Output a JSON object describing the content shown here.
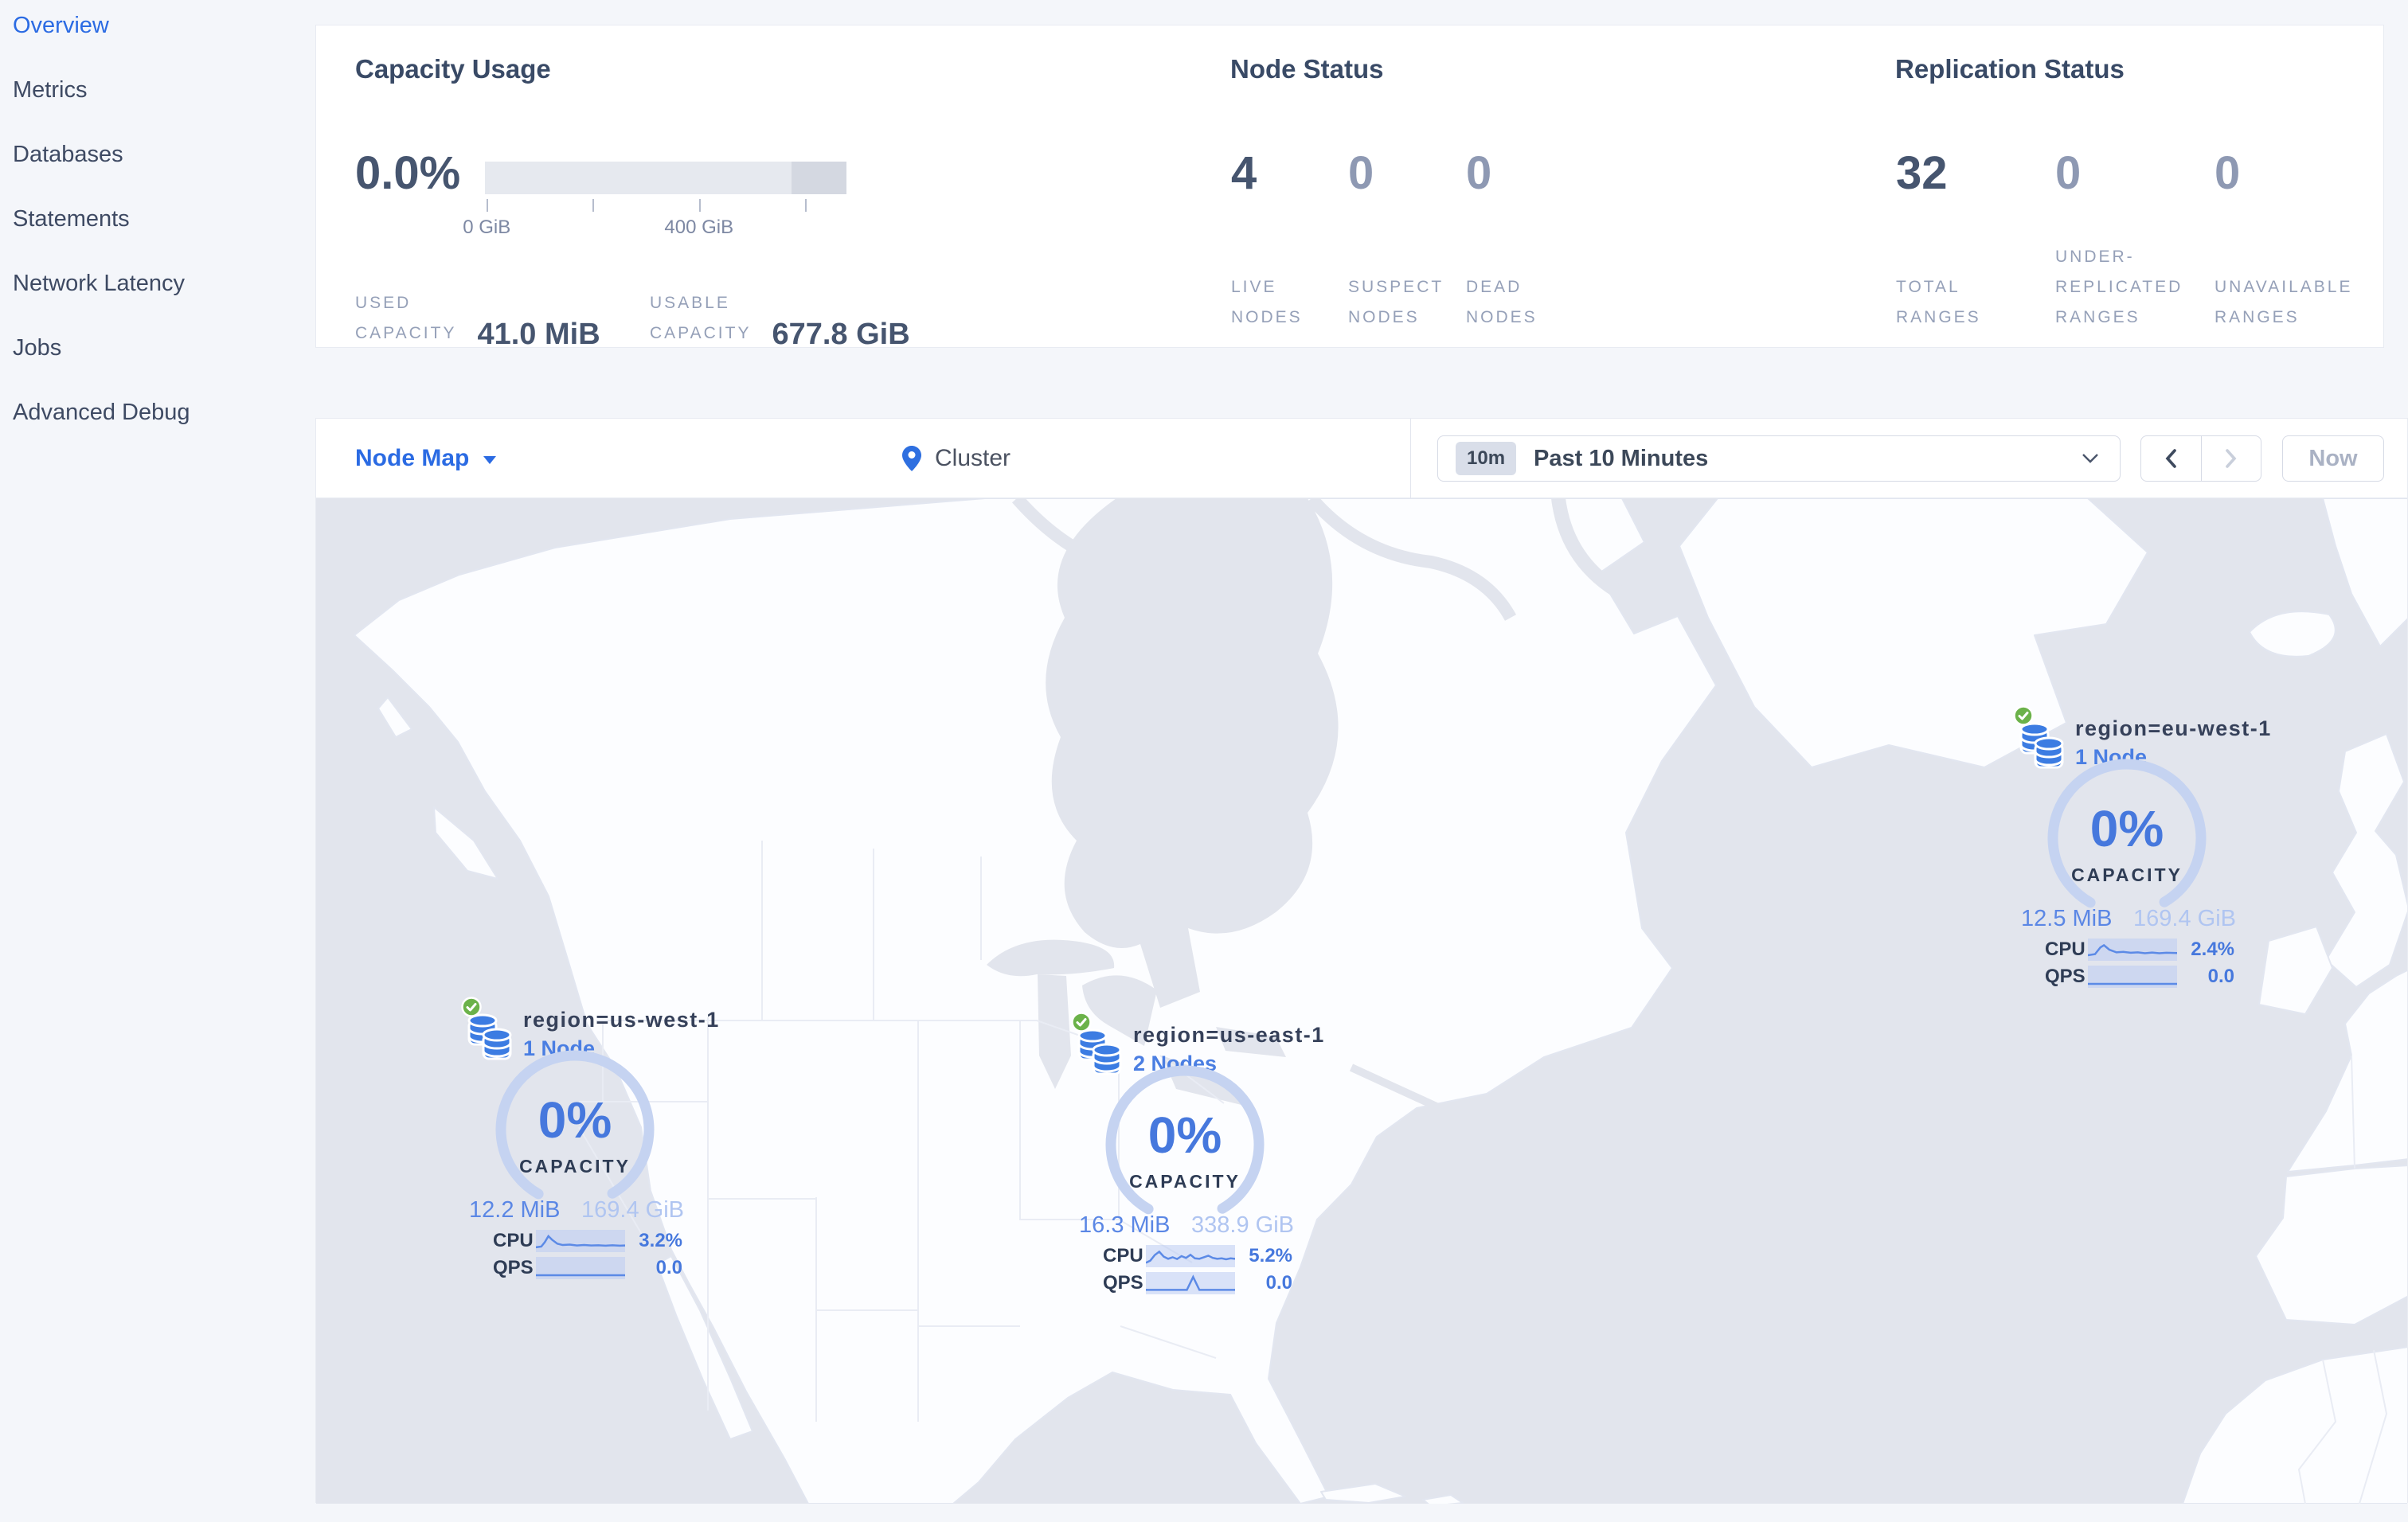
{
  "sidebar": {
    "items": [
      {
        "label": "Overview",
        "active": true
      },
      {
        "label": "Metrics",
        "active": false
      },
      {
        "label": "Databases",
        "active": false
      },
      {
        "label": "Statements",
        "active": false
      },
      {
        "label": "Network Latency",
        "active": false
      },
      {
        "label": "Jobs",
        "active": false
      },
      {
        "label": "Advanced Debug",
        "active": false
      }
    ]
  },
  "summary": {
    "capacity": {
      "title": "Capacity Usage",
      "percent": "0.0%",
      "bar": {
        "segments": [
          {
            "width": 84.8,
            "color": "#e6e9ef"
          },
          {
            "width": 15.2,
            "color": "#d4d8e1"
          }
        ],
        "ticks": [
          {
            "pos": 0.5,
            "label": "0 GiB"
          },
          {
            "pos": 29.8,
            "label": ""
          },
          {
            "pos": 59.2,
            "label": "400 GiB"
          },
          {
            "pos": 88.5,
            "label": ""
          }
        ]
      },
      "stats": [
        {
          "label_lines": [
            "USED",
            "CAPACITY"
          ],
          "value": "41.0 MiB"
        },
        {
          "label_lines": [
            "USABLE",
            "CAPACITY"
          ],
          "value": "677.8 GiB"
        }
      ]
    },
    "nodes": {
      "title": "Node Status",
      "stats": [
        {
          "value": "4",
          "label_lines": [
            "LIVE",
            "NODES"
          ]
        },
        {
          "value": "0",
          "label_lines": [
            "SUSPECT",
            "NODES"
          ]
        },
        {
          "value": "0",
          "label_lines": [
            "DEAD",
            "NODES"
          ]
        }
      ]
    },
    "replication": {
      "title": "Replication Status",
      "stats": [
        {
          "value": "32",
          "label_lines": [
            "TOTAL",
            "RANGES"
          ]
        },
        {
          "value": "0",
          "label_lines": [
            "UNDER-",
            "REPLICATED",
            "RANGES"
          ]
        },
        {
          "value": "0",
          "label_lines": [
            "UNAVAILABLE",
            "RANGES"
          ]
        }
      ]
    }
  },
  "toolbar": {
    "view_selector": "Node Map",
    "breadcrumb": "Cluster",
    "time_window_badge": "10m",
    "time_window_label": "Past 10 Minutes",
    "now_label": "Now"
  },
  "map": {
    "regions": [
      {
        "name": "region=us-west-1",
        "nodes": "1 Node",
        "percent": "0%",
        "capacity_label": "CAPACITY",
        "used": "12.2 MiB",
        "usable": "169.4 GiB",
        "cpu_label": "CPU",
        "cpu_value": "3.2%",
        "qps_label": "QPS",
        "qps_value": "0.0",
        "cpu_spark": [
          [
            0,
            78
          ],
          [
            6,
            75
          ],
          [
            10,
            55
          ],
          [
            14,
            28
          ],
          [
            18,
            44
          ],
          [
            24,
            62
          ],
          [
            30,
            68
          ],
          [
            38,
            66
          ],
          [
            46,
            70
          ],
          [
            54,
            68
          ],
          [
            62,
            70
          ],
          [
            70,
            69
          ],
          [
            78,
            71
          ],
          [
            86,
            69
          ],
          [
            94,
            71
          ],
          [
            100,
            70
          ]
        ],
        "qps_spark": [
          [
            0,
            82
          ],
          [
            100,
            82
          ]
        ]
      },
      {
        "name": "region=us-east-1",
        "nodes": "2 Nodes",
        "percent": "0%",
        "capacity_label": "CAPACITY",
        "used": "16.3 MiB",
        "usable": "338.9 GiB",
        "cpu_label": "CPU",
        "cpu_value": "5.2%",
        "qps_label": "QPS",
        "qps_value": "0.0",
        "cpu_spark": [
          [
            0,
            80
          ],
          [
            5,
            70
          ],
          [
            10,
            45
          ],
          [
            15,
            30
          ],
          [
            20,
            52
          ],
          [
            25,
            62
          ],
          [
            30,
            55
          ],
          [
            35,
            63
          ],
          [
            40,
            50
          ],
          [
            45,
            58
          ],
          [
            50,
            44
          ],
          [
            55,
            60
          ],
          [
            60,
            62
          ],
          [
            65,
            55
          ],
          [
            70,
            48
          ],
          [
            75,
            58
          ],
          [
            80,
            62
          ],
          [
            85,
            60
          ],
          [
            90,
            64
          ],
          [
            95,
            60
          ],
          [
            100,
            62
          ]
        ],
        "qps_spark": [
          [
            0,
            80
          ],
          [
            46,
            80
          ],
          [
            53,
            22
          ],
          [
            60,
            80
          ],
          [
            100,
            80
          ]
        ]
      },
      {
        "name": "region=eu-west-1",
        "nodes": "1 Node",
        "percent": "0%",
        "capacity_label": "CAPACITY",
        "used": "12.5 MiB",
        "usable": "169.4 GiB",
        "cpu_label": "CPU",
        "cpu_value": "2.4%",
        "qps_label": "QPS",
        "qps_value": "0.0",
        "cpu_spark": [
          [
            0,
            75
          ],
          [
            8,
            70
          ],
          [
            14,
            40
          ],
          [
            18,
            30
          ],
          [
            24,
            50
          ],
          [
            32,
            62
          ],
          [
            40,
            60
          ],
          [
            48,
            64
          ],
          [
            56,
            62
          ],
          [
            64,
            66
          ],
          [
            72,
            63
          ],
          [
            80,
            66
          ],
          [
            88,
            64
          ],
          [
            100,
            65
          ]
        ],
        "qps_spark": [
          [
            0,
            82
          ],
          [
            100,
            82
          ]
        ]
      }
    ]
  },
  "colors": {
    "accent_blue": "#2b6be3",
    "marker_blue": "#4678dd",
    "gauge_arc": "#c5d3f1",
    "ocean": "#e2e5ed",
    "land": "#fcfdff",
    "green_check": "#6bb24a"
  }
}
